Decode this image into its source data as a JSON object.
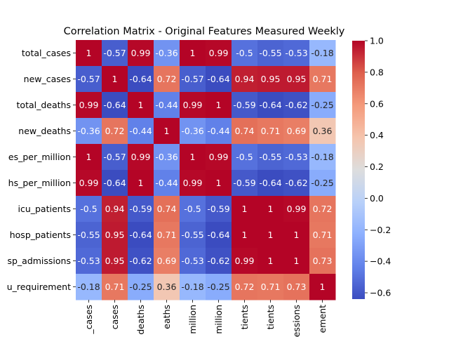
{
  "chart_data": {
    "type": "heatmap",
    "title": "Correlation Matrix - Original Features Measured Weekly",
    "xlabel": "",
    "ylabel": "",
    "row_labels": [
      "total_cases",
      "new_cases",
      "total_deaths",
      "new_deaths",
      "es_per_million",
      "hs_per_million",
      "icu_patients",
      "hosp_patients",
      "sp_admissions",
      "u_requirement"
    ],
    "col_labels": [
      "_cases",
      "cases",
      "deaths",
      "eaths",
      "million",
      "million",
      "tients",
      "tients",
      "essions",
      "ement"
    ],
    "values": [
      [
        1,
        -0.57,
        0.99,
        -0.36,
        1,
        0.99,
        -0.5,
        -0.55,
        -0.53,
        -0.18
      ],
      [
        -0.57,
        1,
        -0.64,
        0.72,
        -0.57,
        -0.64,
        0.94,
        0.95,
        0.95,
        0.71
      ],
      [
        0.99,
        -0.64,
        1,
        -0.44,
        0.99,
        1,
        -0.59,
        -0.64,
        -0.62,
        -0.25
      ],
      [
        -0.36,
        0.72,
        -0.44,
        1,
        -0.36,
        -0.44,
        0.74,
        0.71,
        0.69,
        0.36
      ],
      [
        1,
        -0.57,
        0.99,
        -0.36,
        1,
        0.99,
        -0.5,
        -0.55,
        -0.53,
        -0.18
      ],
      [
        0.99,
        -0.64,
        1,
        -0.44,
        0.99,
        1,
        -0.59,
        -0.64,
        -0.62,
        -0.25
      ],
      [
        -0.5,
        0.94,
        -0.59,
        0.74,
        -0.5,
        -0.59,
        1,
        1,
        0.99,
        0.72
      ],
      [
        -0.55,
        0.95,
        -0.64,
        0.71,
        -0.55,
        -0.64,
        1,
        1,
        1,
        0.71
      ],
      [
        -0.53,
        0.95,
        -0.62,
        0.69,
        -0.53,
        -0.62,
        0.99,
        1,
        1,
        0.73
      ],
      [
        -0.18,
        0.71,
        -0.25,
        0.36,
        -0.18,
        -0.25,
        0.72,
        0.71,
        0.73,
        1
      ]
    ],
    "colormap": "coolwarm",
    "vmin": -0.64,
    "vmax": 1,
    "colorbar_ticks": [
      1.0,
      0.8,
      0.6,
      0.4,
      0.2,
      0.0,
      -0.2,
      -0.4,
      -0.6
    ]
  }
}
